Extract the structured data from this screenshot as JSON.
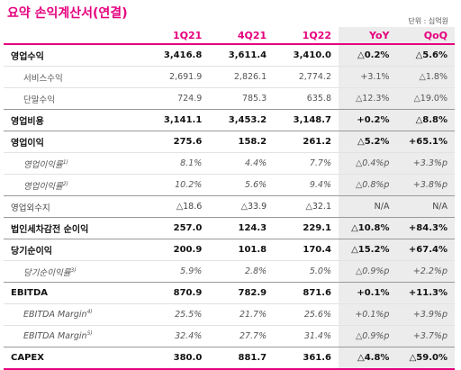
{
  "title": "요약 손익계산서(연결)",
  "unit": "단위 : 십억원",
  "headers": [
    "1Q21",
    "4Q21",
    "1Q22",
    "YoY",
    "QoQ"
  ],
  "rows": [
    {
      "label": "영업수익",
      "sup": "",
      "style": "main",
      "values": [
        "3,416.8",
        "3,611.4",
        "3,410.0",
        "△0.2%",
        "△5.6%"
      ]
    },
    {
      "label": "서비스수익",
      "sup": "",
      "style": "sub",
      "values": [
        "2,691.9",
        "2,826.1",
        "2,774.2",
        "+3.1%",
        "△1.8%"
      ]
    },
    {
      "label": "단말수익",
      "sup": "",
      "style": "sub sep",
      "values": [
        "724.9",
        "785.3",
        "635.8",
        "△12.3%",
        "△19.0%"
      ]
    },
    {
      "label": "영업비용",
      "sup": "",
      "style": "main sep",
      "values": [
        "3,141.1",
        "3,453.2",
        "3,148.7",
        "+0.2%",
        "△8.8%"
      ]
    },
    {
      "label": "영업이익",
      "sup": "",
      "style": "main",
      "values": [
        "275.6",
        "158.2",
        "261.2",
        "△5.2%",
        "+65.1%"
      ]
    },
    {
      "label": "영업이익률",
      "sup": "1)",
      "style": "italic",
      "values": [
        "8.1%",
        "4.4%",
        "7.7%",
        "△0.4%p",
        "+3.3%p"
      ]
    },
    {
      "label": "영업이익률",
      "sup": "2)",
      "style": "italic sep",
      "values": [
        "10.2%",
        "5.6%",
        "9.4%",
        "△0.8%p",
        "+3.8%p"
      ]
    },
    {
      "label": "영업외수지",
      "sup": "",
      "style": "plain sep",
      "values": [
        "△18.6",
        "△33.9",
        "△32.1",
        "N/A",
        "N/A"
      ]
    },
    {
      "label": "법인세차감전 순이익",
      "sup": "",
      "style": "main sep",
      "values": [
        "257.0",
        "124.3",
        "229.1",
        "△10.8%",
        "+84.3%"
      ]
    },
    {
      "label": "당기순이익",
      "sup": "",
      "style": "main",
      "values": [
        "200.9",
        "101.8",
        "170.4",
        "△15.2%",
        "+67.4%"
      ]
    },
    {
      "label": "당기순이익률",
      "sup": "3)",
      "style": "italic sep",
      "values": [
        "5.9%",
        "2.8%",
        "5.0%",
        "△0.9%p",
        "+2.2%p"
      ]
    },
    {
      "label": "EBITDA",
      "sup": "",
      "style": "main",
      "values": [
        "870.9",
        "782.9",
        "871.6",
        "+0.1%",
        "+11.3%"
      ]
    },
    {
      "label": "EBITDA Margin",
      "sup": "4)",
      "style": "italic",
      "values": [
        "25.5%",
        "21.7%",
        "25.6%",
        "+0.1%p",
        "+3.9%p"
      ]
    },
    {
      "label": "EBITDA Margin",
      "sup": "5)",
      "style": "italic sep",
      "values": [
        "32.4%",
        "27.7%",
        "31.4%",
        "△0.9%p",
        "+3.7%p"
      ]
    },
    {
      "label": "CAPEX",
      "sup": "",
      "style": "main last",
      "values": [
        "380.0",
        "881.7",
        "361.6",
        "△4.8%",
        "△59.0%"
      ]
    }
  ]
}
